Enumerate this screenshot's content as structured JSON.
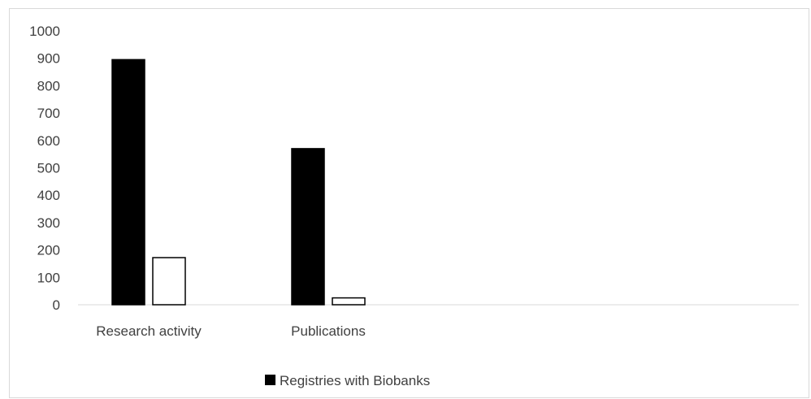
{
  "chart_data": {
    "type": "bar",
    "categories": [
      "Research activity",
      "Publications"
    ],
    "series": [
      {
        "name": "Registries with Biobanks",
        "values": [
          895,
          570
        ],
        "color": "#000000",
        "fill": "#000000"
      },
      {
        "name": "",
        "values": [
          172,
          25
        ],
        "color": "#000000",
        "fill": "#ffffff"
      }
    ],
    "yticks": [
      "0",
      "100",
      "200",
      "300",
      "400",
      "500",
      "600",
      "700",
      "800",
      "900",
      "1000"
    ],
    "ylim": [
      0,
      1000
    ],
    "grid": false,
    "legend_position": "bottom",
    "xlabel": "",
    "ylabel": "",
    "title": ""
  }
}
